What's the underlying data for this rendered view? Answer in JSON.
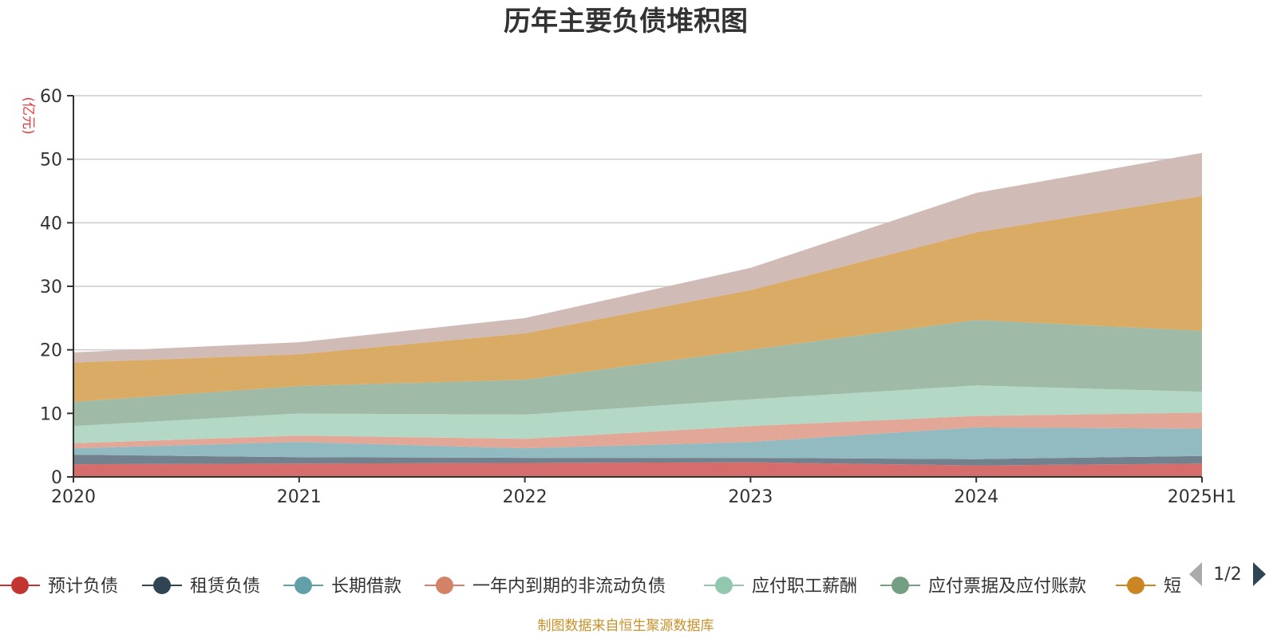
{
  "chart_data": {
    "type": "area",
    "stacked": true,
    "title": "历年主要负债堆积图",
    "ylabel": "(亿元)",
    "xlabel": "",
    "categories": [
      "2020",
      "2021",
      "2022",
      "2023",
      "2024",
      "2025H1"
    ],
    "ylim": [
      0,
      60
    ],
    "yticks": [
      0,
      10,
      20,
      30,
      40,
      50,
      60
    ],
    "grid": true,
    "legend_position": "bottom",
    "legend_page": "1/2",
    "series": [
      {
        "name": "预计负债",
        "color": "#d46a6a",
        "marker_color": "#c23531",
        "values": [
          2.0,
          2.1,
          2.2,
          2.3,
          1.8,
          2.1
        ]
      },
      {
        "name": "租赁负债",
        "color": "#6e7f8c",
        "marker_color": "#2f4554",
        "values": [
          1.5,
          1.0,
          0.8,
          0.7,
          1.0,
          1.2
        ]
      },
      {
        "name": "长期借款",
        "color": "#8fb9c0",
        "marker_color": "#61a0a8",
        "values": [
          1.0,
          2.4,
          1.5,
          2.5,
          5.0,
          4.3
        ]
      },
      {
        "name": "一年内到期的非流动负债",
        "color": "#e2a595",
        "marker_color": "#d48265",
        "values": [
          0.8,
          1.0,
          1.5,
          2.5,
          1.8,
          2.5
        ]
      },
      {
        "name": "应付职工薪酬",
        "color": "#b1d8c5",
        "marker_color": "#91c7ae",
        "values": [
          2.7,
          3.5,
          3.8,
          4.2,
          4.8,
          3.3
        ]
      },
      {
        "name": "应付票据及应付账款",
        "color": "#9db9a4",
        "marker_color": "#749f83",
        "values": [
          3.8,
          4.3,
          5.5,
          7.8,
          10.3,
          9.6
        ]
      },
      {
        "name": "短期借款",
        "color": "#d8a961",
        "marker_color": "#ca8622",
        "values": [
          6.2,
          5.0,
          7.3,
          9.4,
          13.8,
          21.2
        ]
      },
      {
        "name": "",
        "color": "#d0bab5",
        "marker_color": "#bda29a",
        "values": [
          1.6,
          1.9,
          2.4,
          3.5,
          6.2,
          6.8
        ]
      }
    ]
  },
  "source_note": "制图数据来自恒生聚源数据库"
}
